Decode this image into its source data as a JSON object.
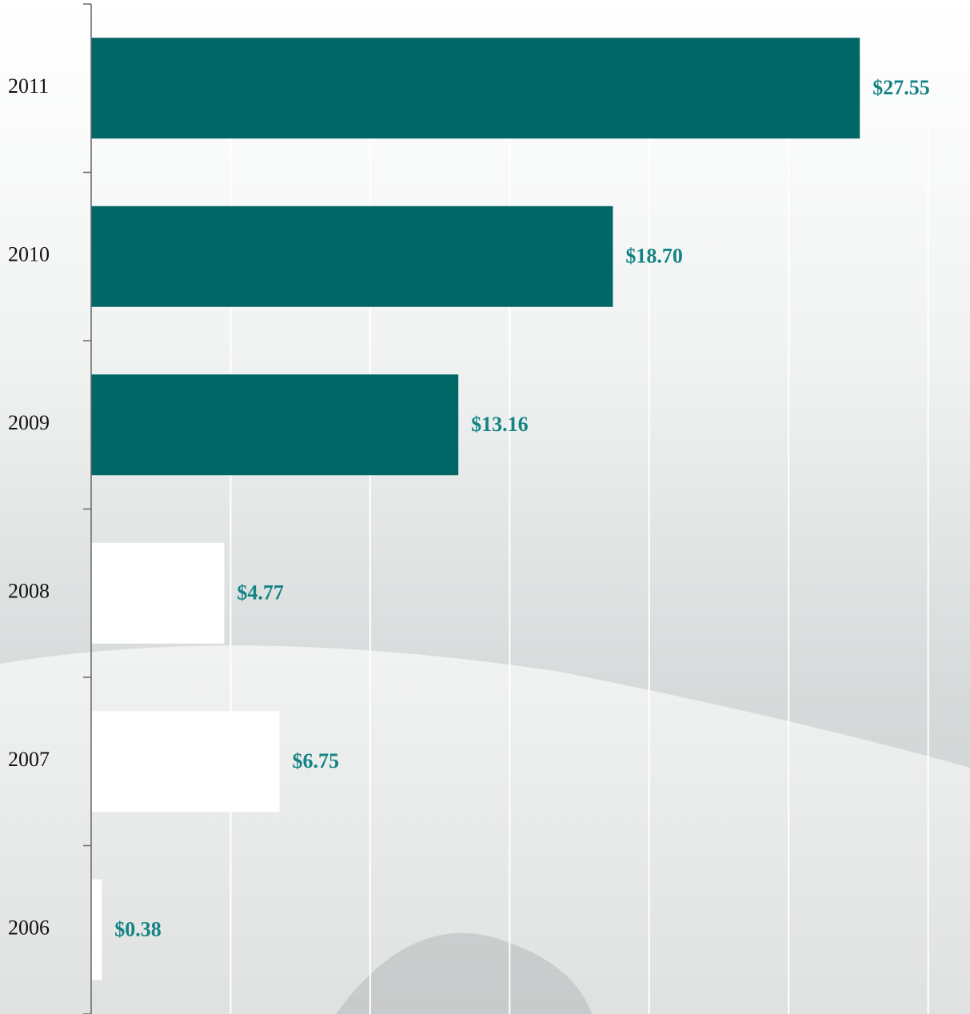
{
  "chart_data": {
    "type": "hbar",
    "categories": [
      "2011",
      "2010",
      "2009",
      "2008",
      "2007",
      "2006"
    ],
    "values": [
      27.55,
      18.7,
      13.16,
      4.77,
      6.75,
      0.38
    ],
    "value_labels": [
      "$27.55",
      "$18.70",
      "$13.16",
      "$4.77",
      "$6.75",
      "$0.38"
    ],
    "colors": [
      "#006766",
      "#006766",
      "#006766",
      "#ffffff",
      "#ffffff",
      "#ffffff"
    ],
    "label_color": "#148383",
    "xlim": [
      0,
      31.5
    ],
    "grid_lines": [
      5,
      10,
      15,
      20,
      25,
      30
    ],
    "grid": true
  }
}
